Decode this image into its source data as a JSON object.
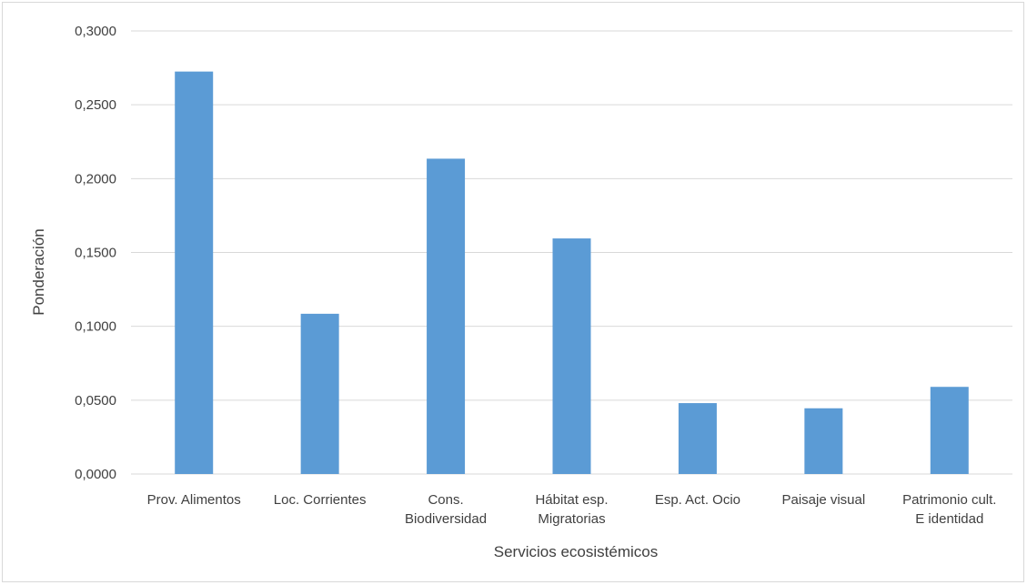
{
  "chart_data": {
    "type": "bar",
    "title": "",
    "xlabel": "Servicios ecosistémicos",
    "ylabel": "Ponderación",
    "categories": [
      [
        "Prov. Alimentos"
      ],
      [
        "Loc. Corrientes"
      ],
      [
        "Cons.",
        "Biodiversidad"
      ],
      [
        "Hábitat esp.",
        "Migratorias"
      ],
      [
        "Esp. Act. Ocio"
      ],
      [
        "Paisaje visual"
      ],
      [
        "Patrimonio cult.",
        "E identidad"
      ]
    ],
    "values": [
      0.2725,
      0.1085,
      0.2135,
      0.1595,
      0.048,
      0.0445,
      0.059
    ],
    "ylim": [
      0,
      0.3
    ],
    "yticks": [
      "0,0000",
      "0,0500",
      "0,1000",
      "0,1500",
      "0,2000",
      "0,2500",
      "0,3000"
    ],
    "grid": true,
    "colors": {
      "bar": "#5b9bd5",
      "grid": "#d9d9d9",
      "text": "#404040"
    }
  }
}
